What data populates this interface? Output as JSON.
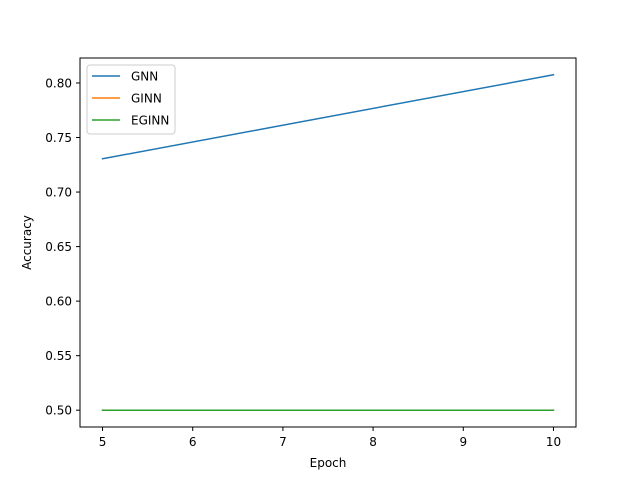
{
  "chart_data": {
    "type": "line",
    "title": "",
    "xlabel": "Epoch",
    "ylabel": "Accuracy",
    "xlim": [
      4.75,
      10.25
    ],
    "ylim": [
      0.4846,
      0.8229
    ],
    "x_ticks": [
      5,
      6,
      7,
      8,
      9,
      10
    ],
    "x_tick_labels": [
      "5",
      "6",
      "7",
      "8",
      "9",
      "10"
    ],
    "y_ticks": [
      0.5,
      0.55,
      0.6,
      0.65,
      0.7,
      0.75,
      0.8
    ],
    "y_tick_labels": [
      "0.50",
      "0.55",
      "0.60",
      "0.65",
      "0.70",
      "0.75",
      "0.80"
    ],
    "grid": false,
    "legend_position": "top-left",
    "series": [
      {
        "name": "GNN",
        "color": "#1f77b4",
        "x": [
          5,
          10
        ],
        "values": [
          0.7305,
          0.8075
        ]
      },
      {
        "name": "GINN",
        "color": "#ff7f0e",
        "x": [
          5,
          10
        ],
        "values": [
          0.5,
          0.5
        ]
      },
      {
        "name": "EGINN",
        "color": "#2ca02c",
        "x": [
          5,
          10
        ],
        "values": [
          0.5,
          0.5
        ]
      }
    ]
  }
}
